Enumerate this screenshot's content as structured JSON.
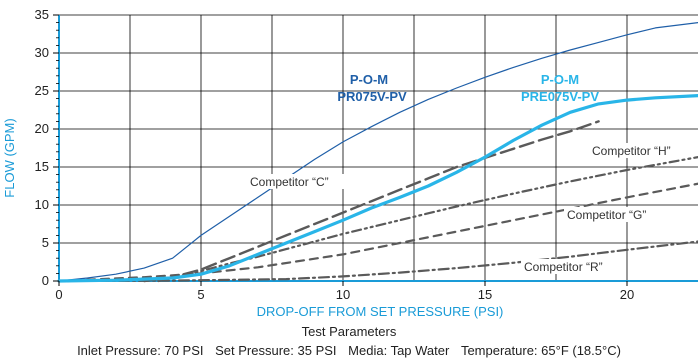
{
  "colors": {
    "axis_blue": "#1a9bd7",
    "pr_line": "#1f5fa8",
    "pre_line": "#29b5e8",
    "competitor": "#5a5a5a",
    "grid": "#000000"
  },
  "chart_data": {
    "type": "line",
    "xlabel": "DROP-OFF FROM SET PRESSURE (PSI)",
    "ylabel": "FLOW (GPM)",
    "xlim": [
      0,
      22.5
    ],
    "ylim": [
      0,
      35
    ],
    "x_ticks": [
      "0",
      "5",
      "10",
      "15",
      "20"
    ],
    "y_ticks": [
      "0",
      "5",
      "10",
      "15",
      "20",
      "25",
      "30",
      "35"
    ],
    "grid": true,
    "legend": "none",
    "series": [
      {
        "name": "P-O-M PR075V-PV",
        "style": "thin solid",
        "points": [
          [
            0,
            0
          ],
          [
            1,
            0.4
          ],
          [
            2,
            0.9
          ],
          [
            3,
            1.7
          ],
          [
            4,
            3
          ],
          [
            4.5,
            4.5
          ],
          [
            5,
            6
          ],
          [
            6,
            8.5
          ],
          [
            7,
            11
          ],
          [
            8,
            13.5
          ],
          [
            9,
            16
          ],
          [
            10,
            18.3
          ],
          [
            11,
            20.3
          ],
          [
            12,
            22.2
          ],
          [
            13,
            23.9
          ],
          [
            14,
            25.4
          ],
          [
            15,
            26.8
          ],
          [
            16,
            28.1
          ],
          [
            17,
            29.3
          ],
          [
            18,
            30.4
          ],
          [
            19,
            31.4
          ],
          [
            20,
            32.4
          ],
          [
            21,
            33.3
          ],
          [
            22.5,
            34
          ]
        ]
      },
      {
        "name": "P-O-M PRE075V-PV",
        "style": "thick solid",
        "points": [
          [
            0,
            0
          ],
          [
            2,
            0.1
          ],
          [
            4,
            0.4
          ],
          [
            5,
            0.9
          ],
          [
            6,
            2
          ],
          [
            7,
            3.5
          ],
          [
            8,
            5
          ],
          [
            9,
            6.5
          ],
          [
            10,
            8
          ],
          [
            11,
            9.6
          ],
          [
            12,
            11
          ],
          [
            13,
            12.5
          ],
          [
            14,
            14.3
          ],
          [
            15,
            16.3
          ],
          [
            16,
            18.5
          ],
          [
            17,
            20.5
          ],
          [
            18,
            22.2
          ],
          [
            19,
            23.3
          ],
          [
            20,
            23.8
          ],
          [
            21,
            24.1
          ],
          [
            22.5,
            24.4
          ]
        ]
      },
      {
        "name": "Competitor “C”",
        "style": "long dash",
        "points": [
          [
            3,
            0
          ],
          [
            4,
            0.5
          ],
          [
            5,
            1.5
          ],
          [
            6,
            3
          ],
          [
            7,
            4.5
          ],
          [
            8,
            6
          ],
          [
            9,
            7.5
          ],
          [
            10,
            9
          ],
          [
            11,
            10.5
          ],
          [
            12,
            12
          ],
          [
            13,
            13.5
          ],
          [
            14,
            15
          ],
          [
            15,
            16.2
          ],
          [
            16,
            17.4
          ],
          [
            17,
            18.6
          ],
          [
            18,
            19.7
          ],
          [
            19,
            21
          ]
        ]
      },
      {
        "name": "Competitor “H”",
        "style": "dash dot dot",
        "points": [
          [
            3.5,
            0
          ],
          [
            5,
            1.3
          ],
          [
            6,
            2.3
          ],
          [
            7,
            3.2
          ],
          [
            8,
            4.2
          ],
          [
            9,
            5.2
          ],
          [
            10,
            6.2
          ],
          [
            12,
            8
          ],
          [
            14,
            9.8
          ],
          [
            16,
            11.5
          ],
          [
            18,
            13.1
          ],
          [
            20,
            14.6
          ],
          [
            22.5,
            16.3
          ]
        ]
      },
      {
        "name": "Competitor “G”",
        "style": "medium dash",
        "points": [
          [
            0,
            0
          ],
          [
            3,
            0.5
          ],
          [
            5,
            1
          ],
          [
            7,
            1.8
          ],
          [
            10,
            3.5
          ],
          [
            12,
            5
          ],
          [
            14,
            6.5
          ],
          [
            16,
            8
          ],
          [
            18,
            9.5
          ],
          [
            20,
            11
          ],
          [
            22.5,
            12.8
          ]
        ]
      },
      {
        "name": "Competitor “R”",
        "style": "dash dot",
        "points": [
          [
            0,
            0
          ],
          [
            4,
            0.05
          ],
          [
            8,
            0.25
          ],
          [
            10,
            0.6
          ],
          [
            12,
            1.1
          ],
          [
            14,
            1.7
          ],
          [
            16,
            2.4
          ],
          [
            18,
            3.2
          ],
          [
            20,
            4.1
          ],
          [
            22.5,
            5.2
          ]
        ]
      }
    ],
    "labels": {
      "pr_brand": "P-O-M",
      "pr_model": "PR075V-PV",
      "pre_brand": "P-O-M",
      "pre_model": "PRE075V-PV",
      "comp_c": "Competitor “C”",
      "comp_h": "Competitor “H”",
      "comp_g": "Competitor “G”",
      "comp_r": "Competitor “R”"
    }
  },
  "test_parameters": {
    "title": "Test Parameters",
    "inlet": "Inlet Pressure: 70 PSI",
    "set": "Set Pressure: 35 PSI",
    "media": "Media: Tap Water",
    "temperature": "Temperature: 65°F (18.5°C)"
  }
}
